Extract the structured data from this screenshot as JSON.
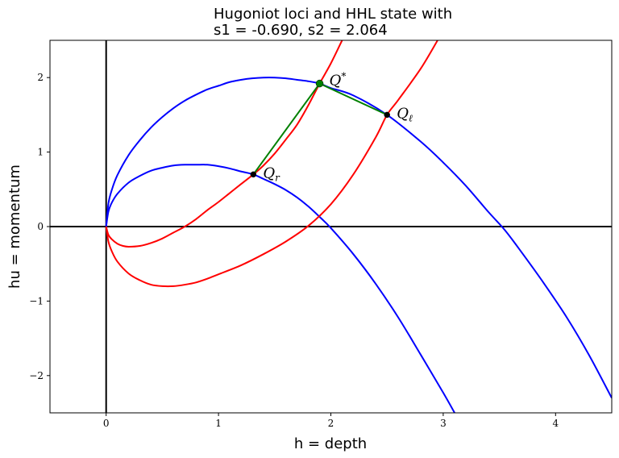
{
  "chart_data": {
    "type": "line",
    "title_line1": "Hugoniot loci and HHL state with",
    "title_line2": "s1 = -0.690, s2 = 2.064",
    "xlabel": "h = depth",
    "ylabel": "hu = momentum",
    "xlim": [
      -0.5,
      4.5
    ],
    "ylim": [
      -2.5,
      2.5
    ],
    "xticks": [
      0,
      1,
      2,
      3,
      4
    ],
    "yticks": [
      -2,
      -1,
      0,
      1,
      2
    ],
    "colors": {
      "blue": "#0000ff",
      "red": "#ff0000",
      "green": "#008000",
      "black": "#000000"
    },
    "states": {
      "Ql": {
        "h": 2.5,
        "hu": 1.5,
        "label_main": "Q",
        "label_sub": "ℓ"
      },
      "Qr": {
        "h": 1.31,
        "hu": 0.7,
        "label_main": "Q",
        "label_sub": "r"
      },
      "Qstar": {
        "h": 1.9,
        "hu": 1.92,
        "label_main": "Q",
        "label_sub": "*"
      }
    },
    "curves": [
      {
        "color": "blue",
        "points": [
          [
            0,
            0
          ],
          [
            0.02,
            0.31
          ],
          [
            0.05,
            0.49
          ],
          [
            0.1,
            0.69
          ],
          [
            0.2,
            0.96
          ],
          [
            0.3,
            1.16
          ],
          [
            0.4,
            1.33
          ],
          [
            0.5,
            1.47
          ],
          [
            0.6,
            1.59
          ],
          [
            0.7,
            1.69
          ],
          [
            0.8,
            1.77
          ],
          [
            0.9,
            1.84
          ],
          [
            1.0,
            1.89
          ],
          [
            1.1,
            1.94
          ],
          [
            1.2,
            1.97
          ],
          [
            1.3,
            1.99
          ],
          [
            1.4,
            2.0
          ],
          [
            1.5,
            2.0
          ],
          [
            1.6,
            1.99
          ],
          [
            1.7,
            1.97
          ],
          [
            1.8,
            1.95
          ],
          [
            1.9,
            1.92
          ],
          [
            2.0,
            1.86
          ],
          [
            2.2,
            1.76
          ],
          [
            2.5,
            1.5
          ],
          [
            2.8,
            1.14
          ],
          [
            3.0,
            0.86
          ],
          [
            3.2,
            0.55
          ],
          [
            3.4,
            0.2
          ],
          [
            3.55,
            -0.05
          ],
          [
            3.7,
            -0.35
          ],
          [
            3.9,
            -0.77
          ],
          [
            4.1,
            -1.22
          ],
          [
            4.3,
            -1.73
          ],
          [
            4.5,
            -2.3
          ]
        ]
      },
      {
        "color": "blue",
        "points": [
          [
            0,
            0
          ],
          [
            0.02,
            0.2
          ],
          [
            0.05,
            0.32
          ],
          [
            0.1,
            0.44
          ],
          [
            0.2,
            0.59
          ],
          [
            0.3,
            0.68
          ],
          [
            0.4,
            0.75
          ],
          [
            0.5,
            0.79
          ],
          [
            0.6,
            0.82
          ],
          [
            0.7,
            0.83
          ],
          [
            0.8,
            0.83
          ],
          [
            0.9,
            0.83
          ],
          [
            1.0,
            0.81
          ],
          [
            1.1,
            0.78
          ],
          [
            1.2,
            0.74
          ],
          [
            1.31,
            0.7
          ],
          [
            1.4,
            0.64
          ],
          [
            1.5,
            0.57
          ],
          [
            1.6,
            0.49
          ],
          [
            1.7,
            0.39
          ],
          [
            1.8,
            0.27
          ],
          [
            1.9,
            0.13
          ],
          [
            2.0,
            -0.02
          ],
          [
            2.2,
            -0.37
          ],
          [
            2.4,
            -0.77
          ],
          [
            2.6,
            -1.22
          ],
          [
            2.8,
            -1.72
          ],
          [
            3.0,
            -2.23
          ],
          [
            3.12,
            -2.55
          ]
        ]
      },
      {
        "color": "red",
        "points": [
          [
            0,
            0
          ],
          [
            0.02,
            -0.11
          ],
          [
            0.05,
            -0.17
          ],
          [
            0.1,
            -0.23
          ],
          [
            0.15,
            -0.26
          ],
          [
            0.2,
            -0.27
          ],
          [
            0.3,
            -0.26
          ],
          [
            0.4,
            -0.22
          ],
          [
            0.5,
            -0.16
          ],
          [
            0.6,
            -0.08
          ],
          [
            0.7,
            0.0
          ],
          [
            0.8,
            0.1
          ],
          [
            0.9,
            0.22
          ],
          [
            1.0,
            0.33
          ],
          [
            1.1,
            0.45
          ],
          [
            1.2,
            0.57
          ],
          [
            1.31,
            0.7
          ],
          [
            1.4,
            0.82
          ],
          [
            1.5,
            0.98
          ],
          [
            1.6,
            1.17
          ],
          [
            1.7,
            1.37
          ],
          [
            1.8,
            1.63
          ],
          [
            1.9,
            1.92
          ],
          [
            2.0,
            2.19
          ],
          [
            2.1,
            2.5
          ]
        ]
      },
      {
        "color": "red",
        "points": [
          [
            0,
            0
          ],
          [
            0.02,
            -0.2
          ],
          [
            0.05,
            -0.33
          ],
          [
            0.1,
            -0.47
          ],
          [
            0.2,
            -0.63
          ],
          [
            0.3,
            -0.72
          ],
          [
            0.4,
            -0.78
          ],
          [
            0.5,
            -0.8
          ],
          [
            0.6,
            -0.8
          ],
          [
            0.7,
            -0.78
          ],
          [
            0.8,
            -0.75
          ],
          [
            0.9,
            -0.7
          ],
          [
            1.0,
            -0.64
          ],
          [
            1.2,
            -0.52
          ],
          [
            1.4,
            -0.37
          ],
          [
            1.6,
            -0.2
          ],
          [
            1.8,
            0.01
          ],
          [
            2.0,
            0.3
          ],
          [
            2.2,
            0.7
          ],
          [
            2.4,
            1.2
          ],
          [
            2.5,
            1.5
          ],
          [
            2.6,
            1.7
          ],
          [
            2.8,
            2.12
          ],
          [
            2.95,
            2.5
          ]
        ]
      },
      {
        "color": "green",
        "points": [
          [
            1.31,
            0.7
          ],
          [
            1.9,
            1.92
          ],
          [
            2.5,
            1.5
          ]
        ]
      }
    ]
  }
}
